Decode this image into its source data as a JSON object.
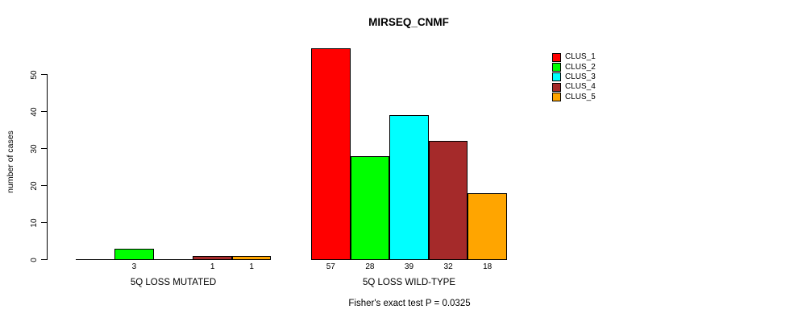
{
  "chart_data": {
    "type": "bar",
    "title": "MIRSEQ_CNMF",
    "ylabel": "number of cases",
    "xlabel": "",
    "yticks": [
      0,
      10,
      20,
      30,
      40,
      50
    ],
    "ylim": [
      0,
      57
    ],
    "grid": false,
    "legend_position": "top-right",
    "categories": [
      "5Q LOSS MUTATED",
      "5Q LOSS WILD-TYPE"
    ],
    "series": [
      {
        "name": "CLUS_1",
        "color": "#FF0000",
        "values": [
          0,
          57
        ]
      },
      {
        "name": "CLUS_2",
        "color": "#00FF00",
        "values": [
          3,
          28
        ]
      },
      {
        "name": "CLUS_3",
        "color": "#00FFFF",
        "values": [
          0,
          39
        ]
      },
      {
        "name": "CLUS_4",
        "color": "#A52A2A",
        "values": [
          1,
          32
        ]
      },
      {
        "name": "CLUS_5",
        "color": "#FFA500",
        "values": [
          1,
          18
        ]
      }
    ],
    "groups": [
      {
        "label": "5Q LOSS MUTATED",
        "values": [
          0,
          3,
          0,
          1,
          1
        ]
      },
      {
        "label": "5Q LOSS WILD-TYPE",
        "values": [
          57,
          28,
          39,
          32,
          18
        ]
      }
    ],
    "caption": "Fisher's exact test P = 0.0325"
  }
}
